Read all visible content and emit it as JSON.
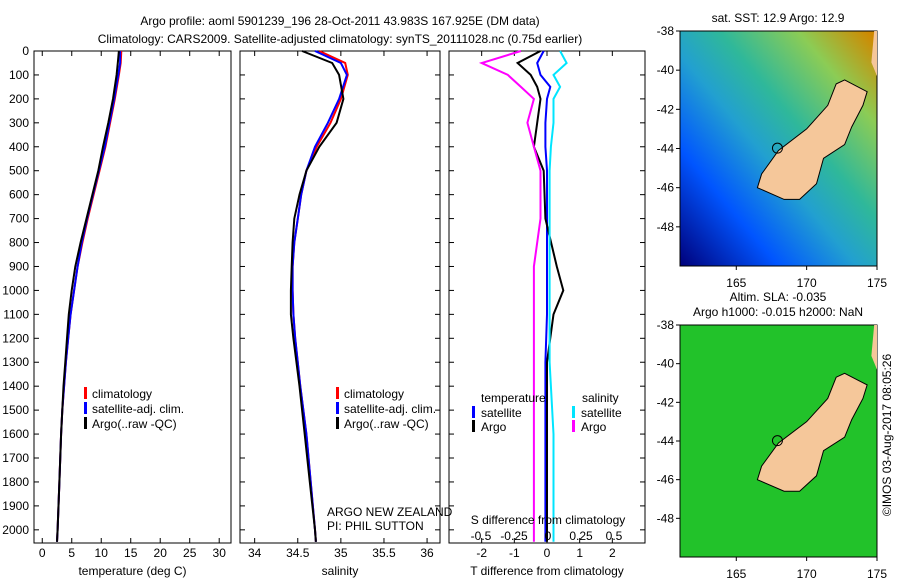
{
  "chart_data": [
    {
      "type": "line",
      "title": "Argo profile: aoml 5901239_196 28-Oct-2011 43.983S 167.925E (DM data)",
      "subtitle": "Climatology: CARS2009. Satellite-adjusted climatology: synTS_20111028.nc (0.75d earlier)",
      "xlabel": "temperature (deg C)",
      "ylabel": "",
      "xlim": [
        -1.4,
        32
      ],
      "ylim": [
        0,
        2055
      ],
      "xticks": [
        0,
        5,
        10,
        15,
        20,
        25,
        30
      ],
      "yticks": [
        0,
        100,
        200,
        300,
        400,
        500,
        600,
        700,
        800,
        900,
        1000,
        1100,
        1200,
        1300,
        1400,
        1500,
        1600,
        1700,
        1800,
        1900,
        2000
      ],
      "depth": [
        0,
        50,
        100,
        200,
        300,
        400,
        500,
        600,
        700,
        800,
        900,
        1000,
        1100,
        1200,
        1300,
        1400,
        1500,
        1600,
        1800,
        2000,
        2050
      ],
      "series": [
        {
          "name": "climatology",
          "color": "#ff0000",
          "values": [
            13.4,
            13.3,
            13.0,
            12.3,
            11.5,
            10.7,
            9.7,
            8.7,
            7.7,
            6.8,
            6.0,
            5.4,
            4.8,
            4.4,
            4.0,
            3.7,
            3.4,
            3.2,
            2.9,
            2.6,
            2.5
          ]
        },
        {
          "name": "satellite-adj. clim.",
          "color": "#0000ff",
          "values": [
            13.2,
            13.2,
            12.9,
            12.2,
            11.4,
            10.6,
            9.6,
            8.6,
            7.6,
            6.7,
            6.0,
            5.4,
            4.8,
            4.4,
            4.0,
            3.7,
            3.4,
            3.2,
            2.9,
            2.6,
            2.5
          ]
        },
        {
          "name": "Argo(..raw -QC)",
          "color": "#000000",
          "values": [
            13.0,
            12.8,
            12.6,
            12.0,
            11.2,
            10.3,
            9.5,
            8.5,
            7.5,
            6.5,
            5.6,
            5.0,
            4.5,
            4.2,
            3.9,
            3.6,
            3.4,
            3.2,
            2.9,
            2.6,
            2.5
          ]
        }
      ],
      "legend_placement": "center-left"
    },
    {
      "type": "line",
      "xlabel": "salinity",
      "xlim": [
        33.83,
        36.15
      ],
      "ylim": [
        0,
        2055
      ],
      "xticks": [
        34,
        34.5,
        35,
        35.5,
        36
      ],
      "depth": [
        0,
        50,
        100,
        200,
        300,
        400,
        500,
        600,
        700,
        800,
        900,
        1000,
        1100,
        1200,
        1400,
        1600,
        1800,
        2000,
        2050
      ],
      "series": [
        {
          "name": "climatology",
          "color": "#ff0000",
          "values": [
            34.75,
            35.05,
            35.08,
            35.0,
            34.88,
            34.72,
            34.6,
            34.54,
            34.5,
            34.46,
            34.44,
            34.44,
            34.45,
            34.47,
            34.53,
            34.6,
            34.65,
            34.7,
            34.71
          ]
        },
        {
          "name": "satellite-adj. clim.",
          "color": "#0000ff",
          "values": [
            34.7,
            35.0,
            35.07,
            34.98,
            34.85,
            34.7,
            34.6,
            34.54,
            34.5,
            34.46,
            34.44,
            34.44,
            34.45,
            34.47,
            34.53,
            34.6,
            34.65,
            34.7,
            34.71
          ]
        },
        {
          "name": "Argo(..raw -QC)",
          "color": "#000000",
          "values": [
            34.55,
            34.9,
            34.98,
            35.03,
            34.95,
            34.75,
            34.6,
            34.52,
            34.46,
            34.44,
            34.43,
            34.42,
            34.42,
            34.45,
            34.52,
            34.58,
            34.64,
            34.7,
            34.71
          ]
        }
      ],
      "annotations": [
        "ARGO NEW ZEALAND",
        "PI: PHIL SUTTON"
      ],
      "legend_placement": "center-left"
    },
    {
      "type": "line",
      "xlabel": "T difference from climatology",
      "x2label": "S difference from climatology",
      "xlim": [
        -3,
        3
      ],
      "ylim": [
        0,
        2055
      ],
      "xticks": [
        -2,
        -1,
        0,
        1,
        2
      ],
      "x2ticks": [
        "-0.5",
        "-0.25",
        "0",
        "0.25",
        "0.5"
      ],
      "depth": [
        0,
        50,
        100,
        150,
        200,
        300,
        400,
        500,
        700,
        900,
        1000,
        1100,
        1300,
        1600,
        2000,
        2050
      ],
      "legend_headers": [
        "temperature",
        "salinity"
      ],
      "series": [
        {
          "name": "satellite",
          "group": "temperature",
          "color": "#0000ff",
          "values": [
            -0.1,
            -0.3,
            -0.2,
            0.1,
            0.0,
            -0.05,
            -0.05,
            0,
            0,
            0,
            0,
            0,
            -0.05,
            -0.05,
            -0.05,
            -0.05
          ]
        },
        {
          "name": "Argo",
          "group": "temperature",
          "color": "#000000",
          "values": [
            -0.2,
            -0.9,
            -0.5,
            -0.3,
            -0.2,
            -0.3,
            -0.4,
            -0.1,
            -0.05,
            0.3,
            0.5,
            0.2,
            0,
            0,
            0,
            0
          ]
        },
        {
          "name": "satellite",
          "group": "salinity",
          "color": "#00e5ff",
          "values": [
            0.1,
            0.15,
            0.05,
            0.1,
            0.05,
            0.05,
            0.03,
            0.02,
            0.02,
            0.02,
            0.02,
            0.02,
            0.02,
            0.05,
            0.05,
            0.05
          ]
        },
        {
          "name": "Argo",
          "group": "salinity",
          "color": "#ff00ff",
          "values": [
            -0.2,
            -0.5,
            -0.3,
            -0.2,
            -0.1,
            -0.15,
            -0.1,
            -0.05,
            -0.05,
            -0.1,
            -0.1,
            -0.1,
            -0.1,
            -0.1,
            -0.1,
            -0.1
          ]
        }
      ],
      "legend_placement": "center"
    }
  ],
  "maps": [
    {
      "title": "sat. SST: 12.9 Argo: 12.9",
      "lon": [
        161,
        175
      ],
      "lat": [
        -50,
        -38
      ],
      "lon_ticks": [
        165,
        170,
        175
      ],
      "lat_ticks": [
        -38,
        -40,
        -42,
        -44,
        -46,
        -48
      ],
      "argo_lon": 167.925,
      "argo_lat": -43.983,
      "colors": [
        "#00007a",
        "#0055ff",
        "#22a0d0",
        "#2fb89a",
        "#8ccc55",
        "#d08800"
      ]
    },
    {
      "title": "Altim. SLA: -0.035",
      "subtitle": "Argo h1000: -0.015 h2000: NaN",
      "lon": [
        161,
        175
      ],
      "lat": [
        -50,
        -38
      ],
      "lon_ticks": [
        165,
        170,
        175
      ],
      "lat_ticks": [
        -38,
        -40,
        -42,
        -44,
        -46,
        -48
      ],
      "argo_lon": 167.925,
      "argo_lat": -43.983,
      "colors": [
        "#22c22a",
        "#5edc22",
        "#b8ee20"
      ]
    }
  ],
  "credit": "©IMOS 03-Aug-2017 08:05:26",
  "land_color": "#f5c79a"
}
